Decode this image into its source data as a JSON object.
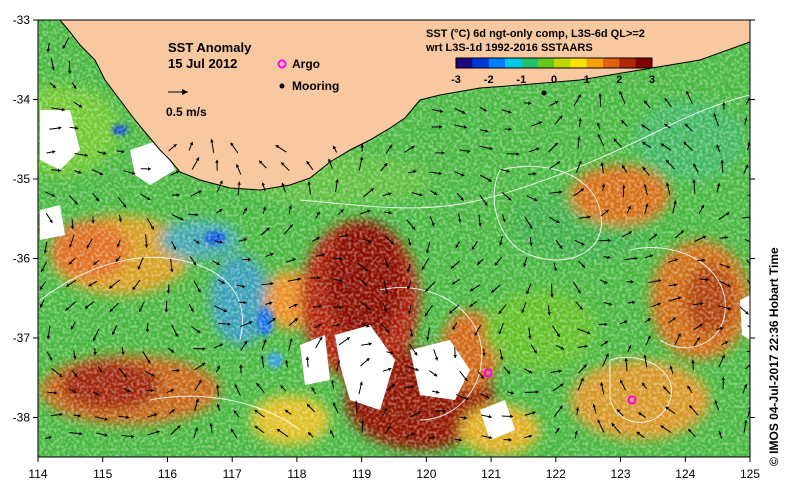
{
  "map": {
    "title": "SST Anomaly",
    "date": "15 Jul 2012",
    "legend": {
      "argo_label": "Argo",
      "mooring_label": "Mooring",
      "scale_label": "0.5 m/s",
      "argo_color": "#ff00ff",
      "mooring_color": "#000000"
    },
    "colorbar": {
      "title_line1": "SST (°C) 6d ngt-only comp, L3S-6d QL>=2",
      "title_line2": "wrt L3S-1d 1992-2016 SSTAARS",
      "ticks": [
        "-3",
        "-2",
        "-1",
        "0",
        "1",
        "2",
        "3"
      ],
      "colors": [
        "#1a0a80",
        "#0038d8",
        "#0080ff",
        "#00c8e8",
        "#20c070",
        "#60c820",
        "#c0d800",
        "#f8e000",
        "#f8a000",
        "#e06010",
        "#b02808",
        "#800000"
      ]
    },
    "credit": "© IMOS 04-Jul-2017 22:36 Hobart Time",
    "x_axis_ticks": [
      "114",
      "115",
      "116",
      "117",
      "118",
      "119",
      "120",
      "121",
      "122",
      "123",
      "124",
      "125"
    ],
    "y_axis_ticks": [
      "-33",
      "-34",
      "-35",
      "-36",
      "-37",
      "-38"
    ],
    "colors": {
      "land": "#f8c8a0",
      "sea_base": "#48b840",
      "nodata": "#ffffff"
    }
  },
  "chart_data": {
    "type": "heatmap",
    "title": "SST Anomaly",
    "subtitle": "15 Jul 2012",
    "lon_range": [
      114,
      125
    ],
    "lat_range": [
      -38.5,
      -33
    ],
    "x_ticks": [
      114,
      115,
      116,
      117,
      118,
      119,
      120,
      121,
      122,
      123,
      124,
      125
    ],
    "y_ticks": [
      -38,
      -37,
      -36,
      -35,
      -34,
      -33
    ],
    "colorbar_range": [
      -3,
      3
    ],
    "colorbar_unit": "°C",
    "argo_floats": [
      {
        "lon": 120.95,
        "lat": -37.45
      },
      {
        "lon": 123.15,
        "lat": -37.8
      }
    ],
    "moorings": [
      {
        "lon": 121.35,
        "lat": -34.45
      }
    ],
    "anomaly_regions": [
      {
        "lon": 119.0,
        "lat": -36.7,
        "value": 3.0
      },
      {
        "lon": 119.6,
        "lat": -37.6,
        "value": 3.0
      },
      {
        "lon": 115.4,
        "lat": -37.5,
        "value": 2.5
      },
      {
        "lon": 123.5,
        "lat": -35.3,
        "value": 2.0
      },
      {
        "lon": 124.6,
        "lat": -36.6,
        "value": 2.5
      },
      {
        "lon": 117.3,
        "lat": -37.9,
        "value": 1.0
      },
      {
        "lon": 122.0,
        "lat": -35.8,
        "value": 0.0
      },
      {
        "lon": 121.0,
        "lat": -37.3,
        "value": 1.5
      },
      {
        "lon": 114.8,
        "lat": -36.0,
        "value": 1.5
      },
      {
        "lon": 117.5,
        "lat": -36.5,
        "value": -0.5
      },
      {
        "lon": 122.5,
        "lat": -36.8,
        "value": 0.0
      },
      {
        "lon": 118.5,
        "lat": -34.8,
        "value": 0.5
      }
    ]
  }
}
